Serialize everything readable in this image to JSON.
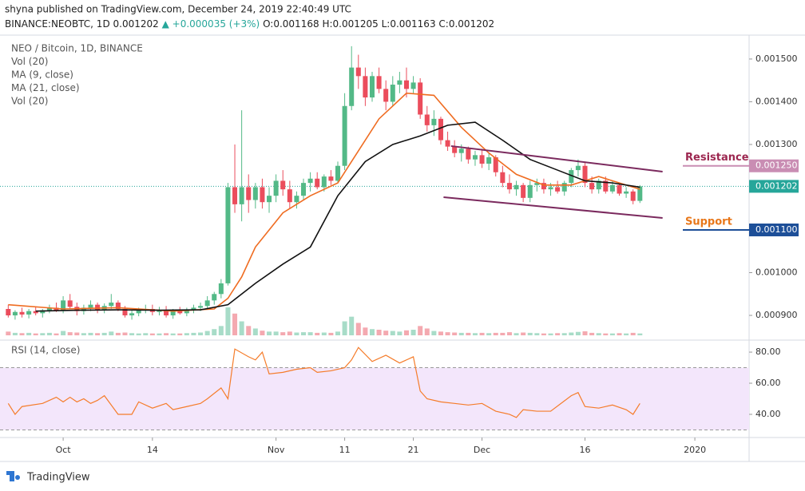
{
  "header": {
    "published": "shyna published on TradingView.com, December 24, 2019 22:40:49 UTC",
    "symbol": "BINANCE:NEOBTC, 1D",
    "last": "0.001202",
    "change": "▲ +0.000035 (+3%)",
    "ohlc": [
      "O:0.001168",
      "H:0.001205",
      "L:0.001163",
      "C:0.001202"
    ]
  },
  "footer": "TradingView",
  "chart_data": {
    "type": "candlestick",
    "legend": [
      "NEO / Bitcoin, 1D, BINANCE",
      "Vol (20)",
      "MA (9, close)",
      "MA (21, close)",
      "Vol (20)"
    ],
    "up_color": "#53b987",
    "down_color": "#eb4d5c",
    "vol_up_color": "#a8dcc8",
    "vol_down_color": "#f4a9b0",
    "xlim": [
      -1.2,
      107.9
    ],
    "xticks": [
      {
        "value": 8,
        "label": "Oct"
      },
      {
        "value": 21,
        "label": "14"
      },
      {
        "value": 39,
        "label": "Nov"
      },
      {
        "value": 49,
        "label": "11"
      },
      {
        "value": 59,
        "label": "21"
      },
      {
        "value": 69,
        "label": "Dec"
      },
      {
        "value": 84,
        "label": "16"
      },
      {
        "value": 100,
        "label": "2020"
      }
    ],
    "ylim": [
      0.000844,
      0.001526
    ],
    "yticks": [
      {
        "value": 0.0009,
        "label": "0.000900"
      },
      {
        "value": 0.001,
        "label": "0.001000"
      },
      {
        "value": 0.0011,
        "label": "0.001100"
      },
      {
        "value": 0.0012,
        "label": "0.001200"
      },
      {
        "value": 0.0013,
        "label": "0.001300"
      },
      {
        "value": 0.0014,
        "label": "0.001400"
      },
      {
        "value": 0.0015,
        "label": "0.001500"
      }
    ],
    "candles": [
      [
        0.000915,
        0.000925,
        0.000895,
        0.0009
      ],
      [
        0.0009,
        0.000912,
        0.00089,
        0.000908
      ],
      [
        0.000908,
        0.000918,
        0.000895,
        0.000902
      ],
      [
        0.000902,
        0.000915,
        0.000893,
        0.00091
      ],
      [
        0.00091,
        0.00092,
        0.0009,
        0.000905
      ],
      [
        0.000905,
        0.000915,
        0.000895,
        0.000912
      ],
      [
        0.000912,
        0.000925,
        0.000905,
        0.000918
      ],
      [
        0.000918,
        0.00093,
        0.000908,
        0.000912
      ],
      [
        0.000912,
        0.000945,
        0.000905,
        0.000935
      ],
      [
        0.000935,
        0.00095,
        0.000915,
        0.00092
      ],
      [
        0.00092,
        0.00093,
        0.0009,
        0.00091
      ],
      [
        0.00091,
        0.000925,
        0.000902,
        0.000918
      ],
      [
        0.000918,
        0.000935,
        0.00091,
        0.000925
      ],
      [
        0.000925,
        0.00093,
        0.000905,
        0.000912
      ],
      [
        0.000912,
        0.000928,
        0.000905,
        0.000922
      ],
      [
        0.000922,
        0.00095,
        0.000915,
        0.00093
      ],
      [
        0.00093,
        0.000935,
        0.00091,
        0.000915
      ],
      [
        0.000915,
        0.000922,
        0.000895,
        0.0009
      ],
      [
        0.0009,
        0.000912,
        0.00089,
        0.000905
      ],
      [
        0.000905,
        0.000918,
        0.000898,
        0.000912
      ],
      [
        0.000912,
        0.000925,
        0.000905,
        0.000915
      ],
      [
        0.000915,
        0.000925,
        0.0009,
        0.000908
      ],
      [
        0.000908,
        0.00092,
        0.0009,
        0.000912
      ],
      [
        0.000912,
        0.000922,
        0.000895,
        0.0009
      ],
      [
        0.0009,
        0.000915,
        0.000892,
        0.00091
      ],
      [
        0.00091,
        0.00092,
        0.000902,
        0.000905
      ],
      [
        0.000905,
        0.000918,
        0.000898,
        0.000912
      ],
      [
        0.000912,
        0.000925,
        0.000905,
        0.000918
      ],
      [
        0.000918,
        0.00093,
        0.00091,
        0.000922
      ],
      [
        0.000922,
        0.000945,
        0.000915,
        0.000935
      ],
      [
        0.000935,
        0.000955,
        0.000925,
        0.00095
      ],
      [
        0.00095,
        0.000985,
        0.00094,
        0.000975
      ],
      [
        0.000975,
        0.00121,
        0.00097,
        0.0012
      ],
      [
        0.0012,
        0.0013,
        0.00114,
        0.00116
      ],
      [
        0.00116,
        0.00138,
        0.00112,
        0.0012
      ],
      [
        0.0012,
        0.00123,
        0.00114,
        0.00117
      ],
      [
        0.00117,
        0.00121,
        0.00115,
        0.0012
      ],
      [
        0.0012,
        0.00122,
        0.00115,
        0.001165
      ],
      [
        0.001165,
        0.0012,
        0.00114,
        0.00118
      ],
      [
        0.00118,
        0.00123,
        0.001165,
        0.001215
      ],
      [
        0.001215,
        0.00124,
        0.00118,
        0.001195
      ],
      [
        0.001195,
        0.001215,
        0.00115,
        0.001165
      ],
      [
        0.001165,
        0.00119,
        0.00115,
        0.00118
      ],
      [
        0.00118,
        0.00122,
        0.00117,
        0.00121
      ],
      [
        0.00121,
        0.001235,
        0.00119,
        0.00122
      ],
      [
        0.00122,
        0.001235,
        0.001195,
        0.0012
      ],
      [
        0.0012,
        0.00123,
        0.00119,
        0.001225
      ],
      [
        0.001225,
        0.00124,
        0.001205,
        0.001215
      ],
      [
        0.001215,
        0.00126,
        0.00121,
        0.00125
      ],
      [
        0.00125,
        0.00142,
        0.00124,
        0.00139
      ],
      [
        0.00139,
        0.00153,
        0.00138,
        0.00148
      ],
      [
        0.00148,
        0.00151,
        0.00143,
        0.00146
      ],
      [
        0.00146,
        0.00148,
        0.00139,
        0.00141
      ],
      [
        0.00141,
        0.00147,
        0.0014,
        0.00146
      ],
      [
        0.00146,
        0.00148,
        0.00142,
        0.00143
      ],
      [
        0.00143,
        0.00145,
        0.00138,
        0.0014
      ],
      [
        0.0014,
        0.00146,
        0.00139,
        0.00144
      ],
      [
        0.00144,
        0.00147,
        0.00142,
        0.00145
      ],
      [
        0.00145,
        0.00148,
        0.00141,
        0.00143
      ],
      [
        0.00143,
        0.00146,
        0.00142,
        0.001445
      ],
      [
        0.001445,
        0.001455,
        0.00136,
        0.00137
      ],
      [
        0.00137,
        0.00139,
        0.00133,
        0.001345
      ],
      [
        0.001345,
        0.00138,
        0.00132,
        0.00136
      ],
      [
        0.00136,
        0.001365,
        0.0013,
        0.00131
      ],
      [
        0.00131,
        0.00133,
        0.001285,
        0.001295
      ],
      [
        0.001295,
        0.00131,
        0.00127,
        0.00128
      ],
      [
        0.00128,
        0.0013,
        0.00126,
        0.00129
      ],
      [
        0.00129,
        0.001295,
        0.001255,
        0.001265
      ],
      [
        0.001265,
        0.001285,
        0.00125,
        0.001275
      ],
      [
        0.001275,
        0.00129,
        0.001245,
        0.001255
      ],
      [
        0.001255,
        0.00128,
        0.00124,
        0.00127
      ],
      [
        0.00127,
        0.001275,
        0.001225,
        0.001235
      ],
      [
        0.001235,
        0.00125,
        0.0012,
        0.00121
      ],
      [
        0.00121,
        0.00123,
        0.001185,
        0.001195
      ],
      [
        0.001195,
        0.001215,
        0.00118,
        0.001205
      ],
      [
        0.001205,
        0.00121,
        0.001165,
        0.001175
      ],
      [
        0.001175,
        0.001215,
        0.001165,
        0.001205
      ],
      [
        0.001205,
        0.00122,
        0.00119,
        0.00121
      ],
      [
        0.00121,
        0.00122,
        0.001185,
        0.001195
      ],
      [
        0.001195,
        0.00121,
        0.00118,
        0.0012
      ],
      [
        0.0012,
        0.001215,
        0.001185,
        0.00119
      ],
      [
        0.00119,
        0.001215,
        0.00118,
        0.00121
      ],
      [
        0.00121,
        0.001245,
        0.0012,
        0.00124
      ],
      [
        0.00124,
        0.001265,
        0.001225,
        0.00125
      ],
      [
        0.00125,
        0.00126,
        0.0012,
        0.00121
      ],
      [
        0.00121,
        0.001225,
        0.001185,
        0.001195
      ],
      [
        0.001195,
        0.00122,
        0.001185,
        0.001215
      ],
      [
        0.001215,
        0.001225,
        0.001185,
        0.00119
      ],
      [
        0.00119,
        0.001215,
        0.001185,
        0.001205
      ],
      [
        0.001205,
        0.00121,
        0.00118,
        0.001185
      ],
      [
        0.001185,
        0.0012,
        0.001175,
        0.00119
      ],
      [
        0.00119,
        0.001195,
        0.00116,
        0.001168
      ],
      [
        0.001168,
        0.001205,
        0.001163,
        0.001202
      ]
    ],
    "volume": [
      12,
      8,
      7,
      8,
      6,
      7,
      8,
      6,
      14,
      10,
      9,
      7,
      8,
      7,
      8,
      12,
      8,
      9,
      7,
      6,
      7,
      6,
      6,
      7,
      6,
      6,
      7,
      8,
      9,
      14,
      20,
      30,
      90,
      70,
      45,
      30,
      22,
      15,
      12,
      12,
      10,
      12,
      9,
      10,
      10,
      8,
      9,
      8,
      12,
      45,
      60,
      40,
      25,
      20,
      18,
      15,
      14,
      12,
      16,
      18,
      30,
      22,
      14,
      12,
      10,
      9,
      8,
      8,
      7,
      8,
      7,
      8,
      8,
      10,
      7,
      9,
      8,
      7,
      6,
      6,
      7,
      7,
      9,
      11,
      13,
      8,
      7,
      6,
      6,
      7,
      6,
      8,
      6
    ],
    "series": [
      {
        "name": "MA (9, close)",
        "color": "#ef6c21",
        "x": [
          0,
          8,
          16,
          24,
          30,
          32,
          34,
          36,
          40,
          44,
          48,
          50,
          54,
          58,
          62,
          66,
          70,
          74,
          78,
          82,
          86,
          90,
          92
        ],
        "values": [
          0.000925,
          0.000915,
          0.000918,
          0.00091,
          0.000915,
          0.00094,
          0.00099,
          0.00106,
          0.00114,
          0.00118,
          0.00121,
          0.00126,
          0.00136,
          0.00142,
          0.001415,
          0.00134,
          0.00128,
          0.00123,
          0.001205,
          0.001205,
          0.001225,
          0.001205,
          0.001195
        ]
      },
      {
        "name": "MA (21, close)",
        "color": "#111111",
        "x": [
          4,
          10,
          16,
          22,
          28,
          32,
          36,
          40,
          44,
          48,
          52,
          56,
          60,
          64,
          68,
          72,
          76,
          80,
          84,
          88,
          92
        ],
        "values": [
          0.00091,
          0.000912,
          0.000913,
          0.000912,
          0.000913,
          0.000925,
          0.000975,
          0.00102,
          0.00106,
          0.00118,
          0.00126,
          0.0013,
          0.00132,
          0.001345,
          0.001352,
          0.00131,
          0.001265,
          0.00124,
          0.001215,
          0.00121,
          0.0012
        ]
      }
    ],
    "channel": {
      "color": "#7b2a5e",
      "upper": {
        "x": [
          64.5,
          95.3
        ],
        "values": [
          0.0012963,
          0.0012364
        ]
      },
      "lower": {
        "x": [
          63.4,
          95.3
        ],
        "values": [
          0.0011766,
          0.001128
        ]
      }
    },
    "last_price": {
      "value": 0.001202,
      "label": "0.001202",
      "color": "#26a69a"
    },
    "annotations": [
      {
        "text": "Resistance",
        "value": 0.00125,
        "label": "0.001250",
        "text_color": "#9c2750",
        "color": "#c98db3"
      },
      {
        "text": "Support",
        "value": 0.0011,
        "label": "0.001100",
        "text_color": "#e8771a",
        "color": "#1d4f98"
      }
    ],
    "rsi": {
      "title": "RSI (14, close)",
      "color": "#f57c2a",
      "ylim": [
        25.1,
        86.7
      ],
      "bands": [
        30,
        70
      ],
      "yticks": [
        {
          "value": 40,
          "label": "40.00"
        },
        {
          "value": 60,
          "label": "60.00"
        },
        {
          "value": 80,
          "label": "80.00"
        }
      ],
      "x": [
        0,
        1,
        2,
        5,
        7,
        8,
        9,
        10,
        11,
        12,
        13,
        14,
        16,
        18,
        19,
        21,
        23,
        24,
        26,
        28,
        29,
        31,
        32,
        33,
        35,
        36,
        37,
        38,
        40,
        42,
        44,
        45,
        47,
        49,
        50,
        51,
        53,
        55,
        57,
        59,
        60,
        61,
        63,
        65,
        67,
        69,
        71,
        73,
        74,
        75,
        77,
        79,
        82,
        83,
        84,
        86,
        88,
        90,
        91,
        92
      ],
      "values": [
        47,
        40,
        45,
        47,
        51,
        48,
        51,
        48,
        50,
        47,
        49,
        52,
        40,
        40,
        48,
        44,
        47,
        43,
        45,
        47,
        50,
        57,
        50,
        82,
        77,
        75,
        80,
        66,
        67,
        69,
        70,
        67,
        68,
        70,
        75,
        83,
        74,
        78,
        73,
        77,
        55,
        50,
        48,
        47,
        46,
        47,
        42,
        40,
        38,
        43,
        42,
        42,
        52,
        54,
        45,
        44,
        46,
        43,
        40,
        47
      ]
    }
  }
}
